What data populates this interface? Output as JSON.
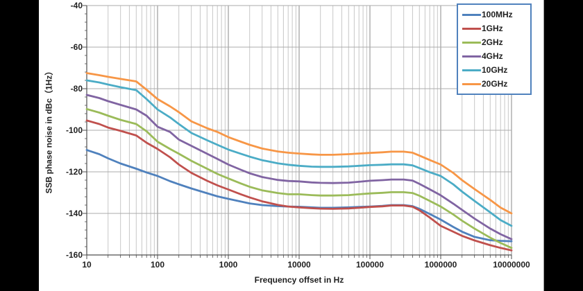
{
  "window": {
    "background": "#000000",
    "panel_background": "#ffffff"
  },
  "palette": {
    "legend_border": "#4f81bd",
    "axis_line": "#4d4d4d",
    "grid_horizontal": "#ababab",
    "grid_minor_vertical": "#c6c6c6",
    "grid_major_vertical": "#8a8a8a",
    "text": "#1f1f1f"
  },
  "chart_data": {
    "type": "line",
    "title": "",
    "xlabel": "Frequency offset in Hz",
    "ylabel": "SSB phase noise in dBc（1Hz）",
    "x_scale": "log",
    "xlim": [
      10,
      10000000
    ],
    "ylim": [
      -160,
      -40
    ],
    "grid": true,
    "legend_position": "top-right",
    "x_ticks": [
      10,
      100,
      1000,
      10000,
      100000,
      1000000,
      10000000
    ],
    "x_tick_labels": [
      "10",
      "100",
      "1000",
      "10000",
      "100000",
      "1000000",
      "10000000"
    ],
    "y_ticks": [
      -40,
      -60,
      -80,
      -100,
      -120,
      -140,
      -160
    ],
    "y_tick_labels": [
      "-40",
      "-60",
      "-80",
      "-100",
      "-120",
      "-140",
      "-160"
    ],
    "y_minor_tick_step": 4,
    "x": [
      10,
      15,
      20,
      30,
      50,
      70,
      100,
      150,
      200,
      300,
      500,
      700,
      1000,
      1500,
      2000,
      3000,
      5000,
      7000,
      10000,
      15000,
      20000,
      30000,
      50000,
      70000,
      100000,
      150000,
      200000,
      300000,
      400000,
      500000,
      700000,
      1000000,
      1500000,
      2000000,
      3000000,
      5000000,
      7000000,
      10000000
    ],
    "series": [
      {
        "name": "100MHz",
        "color": "#4f81bd",
        "values": [
          -109.5,
          -111.5,
          -113.5,
          -116,
          -118.5,
          -120.3,
          -122,
          -124.5,
          -126,
          -128,
          -130.3,
          -131.8,
          -133,
          -134.3,
          -135.2,
          -136,
          -136.5,
          -136.7,
          -136.8,
          -137.1,
          -137.3,
          -137.3,
          -137.1,
          -136.9,
          -136.7,
          -136.4,
          -136,
          -136,
          -136.5,
          -137.8,
          -140.3,
          -143,
          -146.5,
          -148.8,
          -151.3,
          -152.9,
          -153.2,
          -153.4
        ]
      },
      {
        "name": "1GHz",
        "color": "#c0504d",
        "values": [
          -95.3,
          -97,
          -98.7,
          -100.3,
          -102.5,
          -106,
          -109,
          -113,
          -116.5,
          -120.5,
          -124.3,
          -126.5,
          -128.5,
          -130.8,
          -132.3,
          -134.2,
          -135.9,
          -136.7,
          -137.1,
          -137.5,
          -137.7,
          -137.8,
          -137.6,
          -137.3,
          -136.9,
          -136.6,
          -136.2,
          -136.2,
          -136.8,
          -138.5,
          -142,
          -146,
          -148.8,
          -150.8,
          -153,
          -155.3,
          -156.6,
          -157.8
        ]
      },
      {
        "name": "2GHz",
        "color": "#9bbb59",
        "values": [
          -89.8,
          -91.5,
          -93,
          -95,
          -97,
          -100.5,
          -105.5,
          -109,
          -111.3,
          -114.7,
          -118.5,
          -121,
          -123.2,
          -125.6,
          -127.2,
          -128.9,
          -130.2,
          -130.8,
          -130.8,
          -131.2,
          -131.4,
          -131.4,
          -131.2,
          -130.8,
          -130.4,
          -130.1,
          -129.8,
          -129.8,
          -130.2,
          -131.5,
          -134,
          -136.7,
          -140.5,
          -143.5,
          -147.3,
          -151.7,
          -154.2,
          -156.6
        ]
      },
      {
        "name": "4GHz",
        "color": "#8064a2",
        "values": [
          -83,
          -84.5,
          -86,
          -87.8,
          -90,
          -93,
          -98.3,
          -100.8,
          -104.5,
          -107.5,
          -111.3,
          -113.8,
          -116.5,
          -119,
          -120.7,
          -122.5,
          -123.9,
          -124.4,
          -124.6,
          -125.1,
          -125.3,
          -125.4,
          -125.2,
          -124.8,
          -124.3,
          -124,
          -123.7,
          -123.7,
          -124.2,
          -125.8,
          -128.4,
          -131.3,
          -135.3,
          -138.3,
          -142.5,
          -147.3,
          -150,
          -152.4
        ]
      },
      {
        "name": "10GHz",
        "color": "#4bacc6",
        "values": [
          -76,
          -77,
          -78,
          -79.3,
          -80.7,
          -85,
          -90,
          -93.8,
          -97,
          -101.3,
          -104.8,
          -107,
          -109.3,
          -111.3,
          -112.7,
          -114.4,
          -115.9,
          -116.6,
          -117.1,
          -117.5,
          -117.6,
          -117.6,
          -117.4,
          -117.1,
          -116.8,
          -116.6,
          -116.4,
          -116.4,
          -116.9,
          -118.2,
          -120.2,
          -122,
          -126,
          -129.5,
          -134,
          -139.5,
          -143.2,
          -146
        ]
      },
      {
        "name": "20GHz",
        "color": "#f79646",
        "values": [
          -72.5,
          -73.5,
          -74.3,
          -75.3,
          -76.5,
          -80.5,
          -85,
          -88.5,
          -91.3,
          -95.7,
          -99,
          -100.8,
          -103.3,
          -105.5,
          -107,
          -108.8,
          -110.2,
          -110.8,
          -111.2,
          -111.6,
          -111.8,
          -111.8,
          -111.5,
          -111.2,
          -110.9,
          -110.6,
          -110.3,
          -110.3,
          -110.8,
          -112.2,
          -114.3,
          -116.5,
          -120.5,
          -124,
          -128.3,
          -133.5,
          -137.2,
          -140
        ]
      }
    ]
  }
}
